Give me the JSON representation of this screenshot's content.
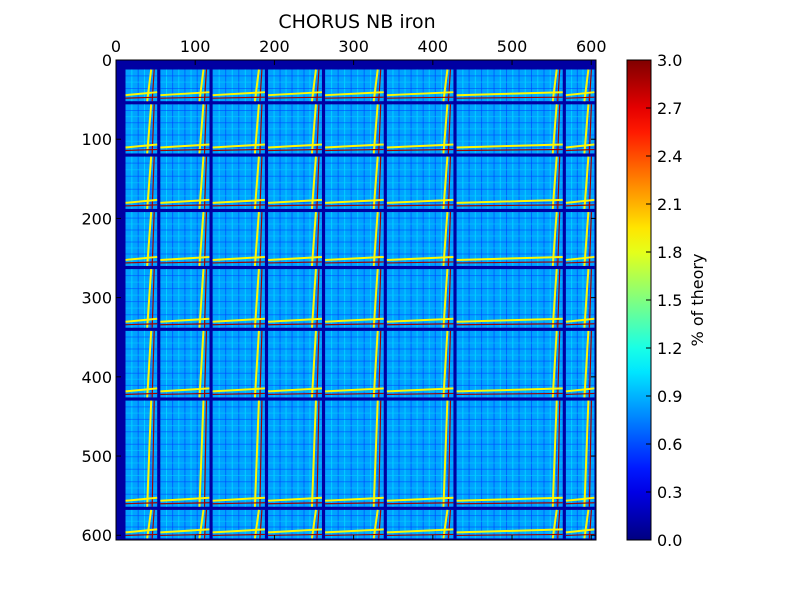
{
  "chart_data": {
    "type": "heatmap",
    "title": "CHORUS NB iron",
    "xlabel": "",
    "ylabel": "",
    "x_range": [
      0,
      606
    ],
    "y_range": [
      0,
      606
    ],
    "y_inverted": true,
    "x_ticks": [
      0,
      100,
      200,
      300,
      400,
      500,
      600
    ],
    "y_ticks": [
      0,
      100,
      200,
      300,
      400,
      500,
      600
    ],
    "x_axis_position": "top",
    "colorbar": {
      "label": "% of theory",
      "range": [
        0.0,
        3.0
      ],
      "ticks": [
        "0.0",
        "0.3",
        "0.6",
        "0.9",
        "1.2",
        "1.5",
        "1.8",
        "2.1",
        "2.4",
        "2.7",
        "3.0"
      ],
      "colormap": "jet"
    },
    "block_boundaries": [
      0,
      10,
      54,
      120,
      190,
      262,
      340,
      428,
      566,
      606
    ],
    "typical_block_value": 0.85,
    "diagonal_band_value": 1.9,
    "grid": false
  }
}
